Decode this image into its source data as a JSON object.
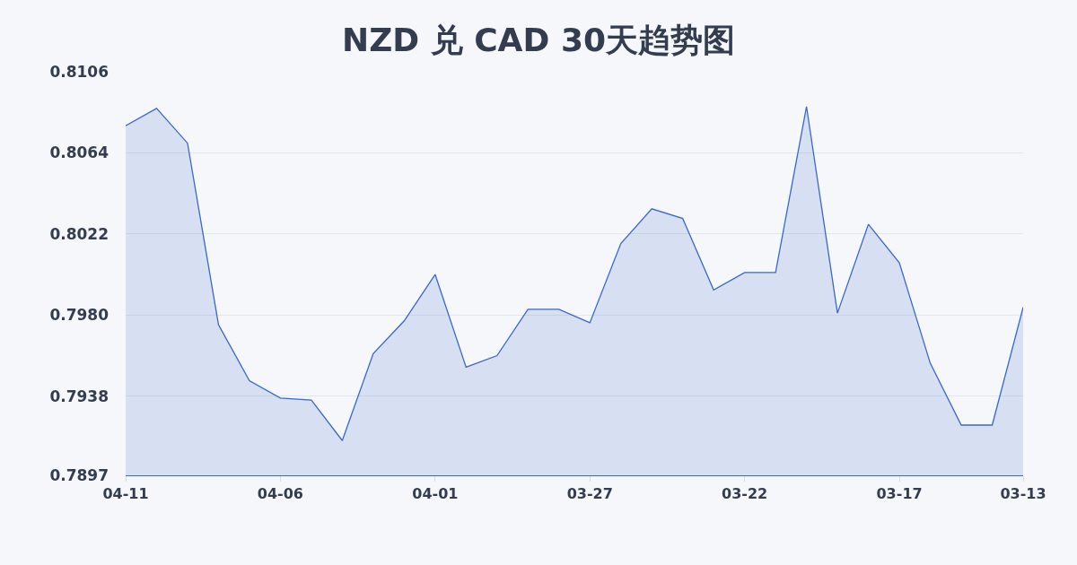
{
  "chart_data": {
    "type": "area",
    "title": "NZD 兑 CAD 30天趋势图",
    "categories": [
      "04-11",
      null,
      null,
      null,
      null,
      "04-06",
      null,
      null,
      null,
      null,
      "04-01",
      null,
      null,
      null,
      null,
      "03-27",
      null,
      null,
      null,
      null,
      "03-22",
      null,
      null,
      null,
      null,
      "03-17",
      null,
      null,
      null,
      "03-13"
    ],
    "series": [
      {
        "color": "#3a67cc",
        "values": [
          0.8078,
          0.8087,
          0.8069,
          0.7975,
          0.7946,
          0.7937,
          0.7936,
          0.7915,
          0.796,
          0.7977,
          0.8001,
          0.7953,
          0.7959,
          0.7983,
          0.7983,
          0.7976,
          0.8017,
          0.8035,
          0.803,
          0.7993,
          0.8002,
          0.8002,
          0.8088,
          0.7981,
          0.8027,
          0.8007,
          0.7955,
          0.7923,
          0.7923,
          0.7984
        ]
      }
    ],
    "ylim": [
      0.7897,
      0.8106
    ],
    "yticks": [
      0.7897,
      0.7938,
      {
        "value": 0.798,
        "label": "0.7980"
      },
      0.8022,
      0.8064,
      0.8106
    ],
    "grid": "y"
  }
}
